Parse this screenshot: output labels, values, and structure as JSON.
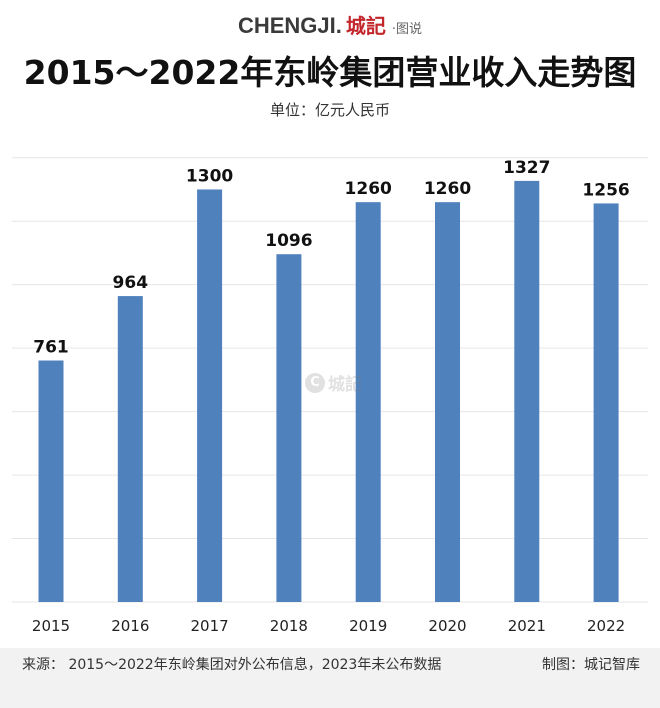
{
  "header": {
    "brand_latin": "CHENGJI.",
    "brand_cn": "城記",
    "brand_suffix": "·图说"
  },
  "watermark": {
    "icon": "C",
    "text": "城記"
  },
  "colors": {
    "bar": "#4f81bd",
    "brand": "#c3262b",
    "grid": "#e6e6e6"
  },
  "chart_data": {
    "type": "bar",
    "title": "2015～2022年东岭集团营业收入走势图",
    "subtitle": "单位：亿元人民币",
    "categories": [
      "2015",
      "2016",
      "2017",
      "2018",
      "2019",
      "2020",
      "2021",
      "2022"
    ],
    "values": [
      761,
      964,
      1300,
      1096,
      1260,
      1260,
      1327,
      1256
    ],
    "data_labels": [
      "761",
      "964",
      "1300",
      "1096",
      "1260",
      "1260",
      "1327",
      "1256"
    ],
    "ylim": [
      0,
      1500
    ],
    "grid": true,
    "legend": "none"
  },
  "footer": {
    "source": "来源：  2015～2022年东岭集团对外公布信息，2023年未公布数据",
    "maker": "制图：城记智库"
  }
}
